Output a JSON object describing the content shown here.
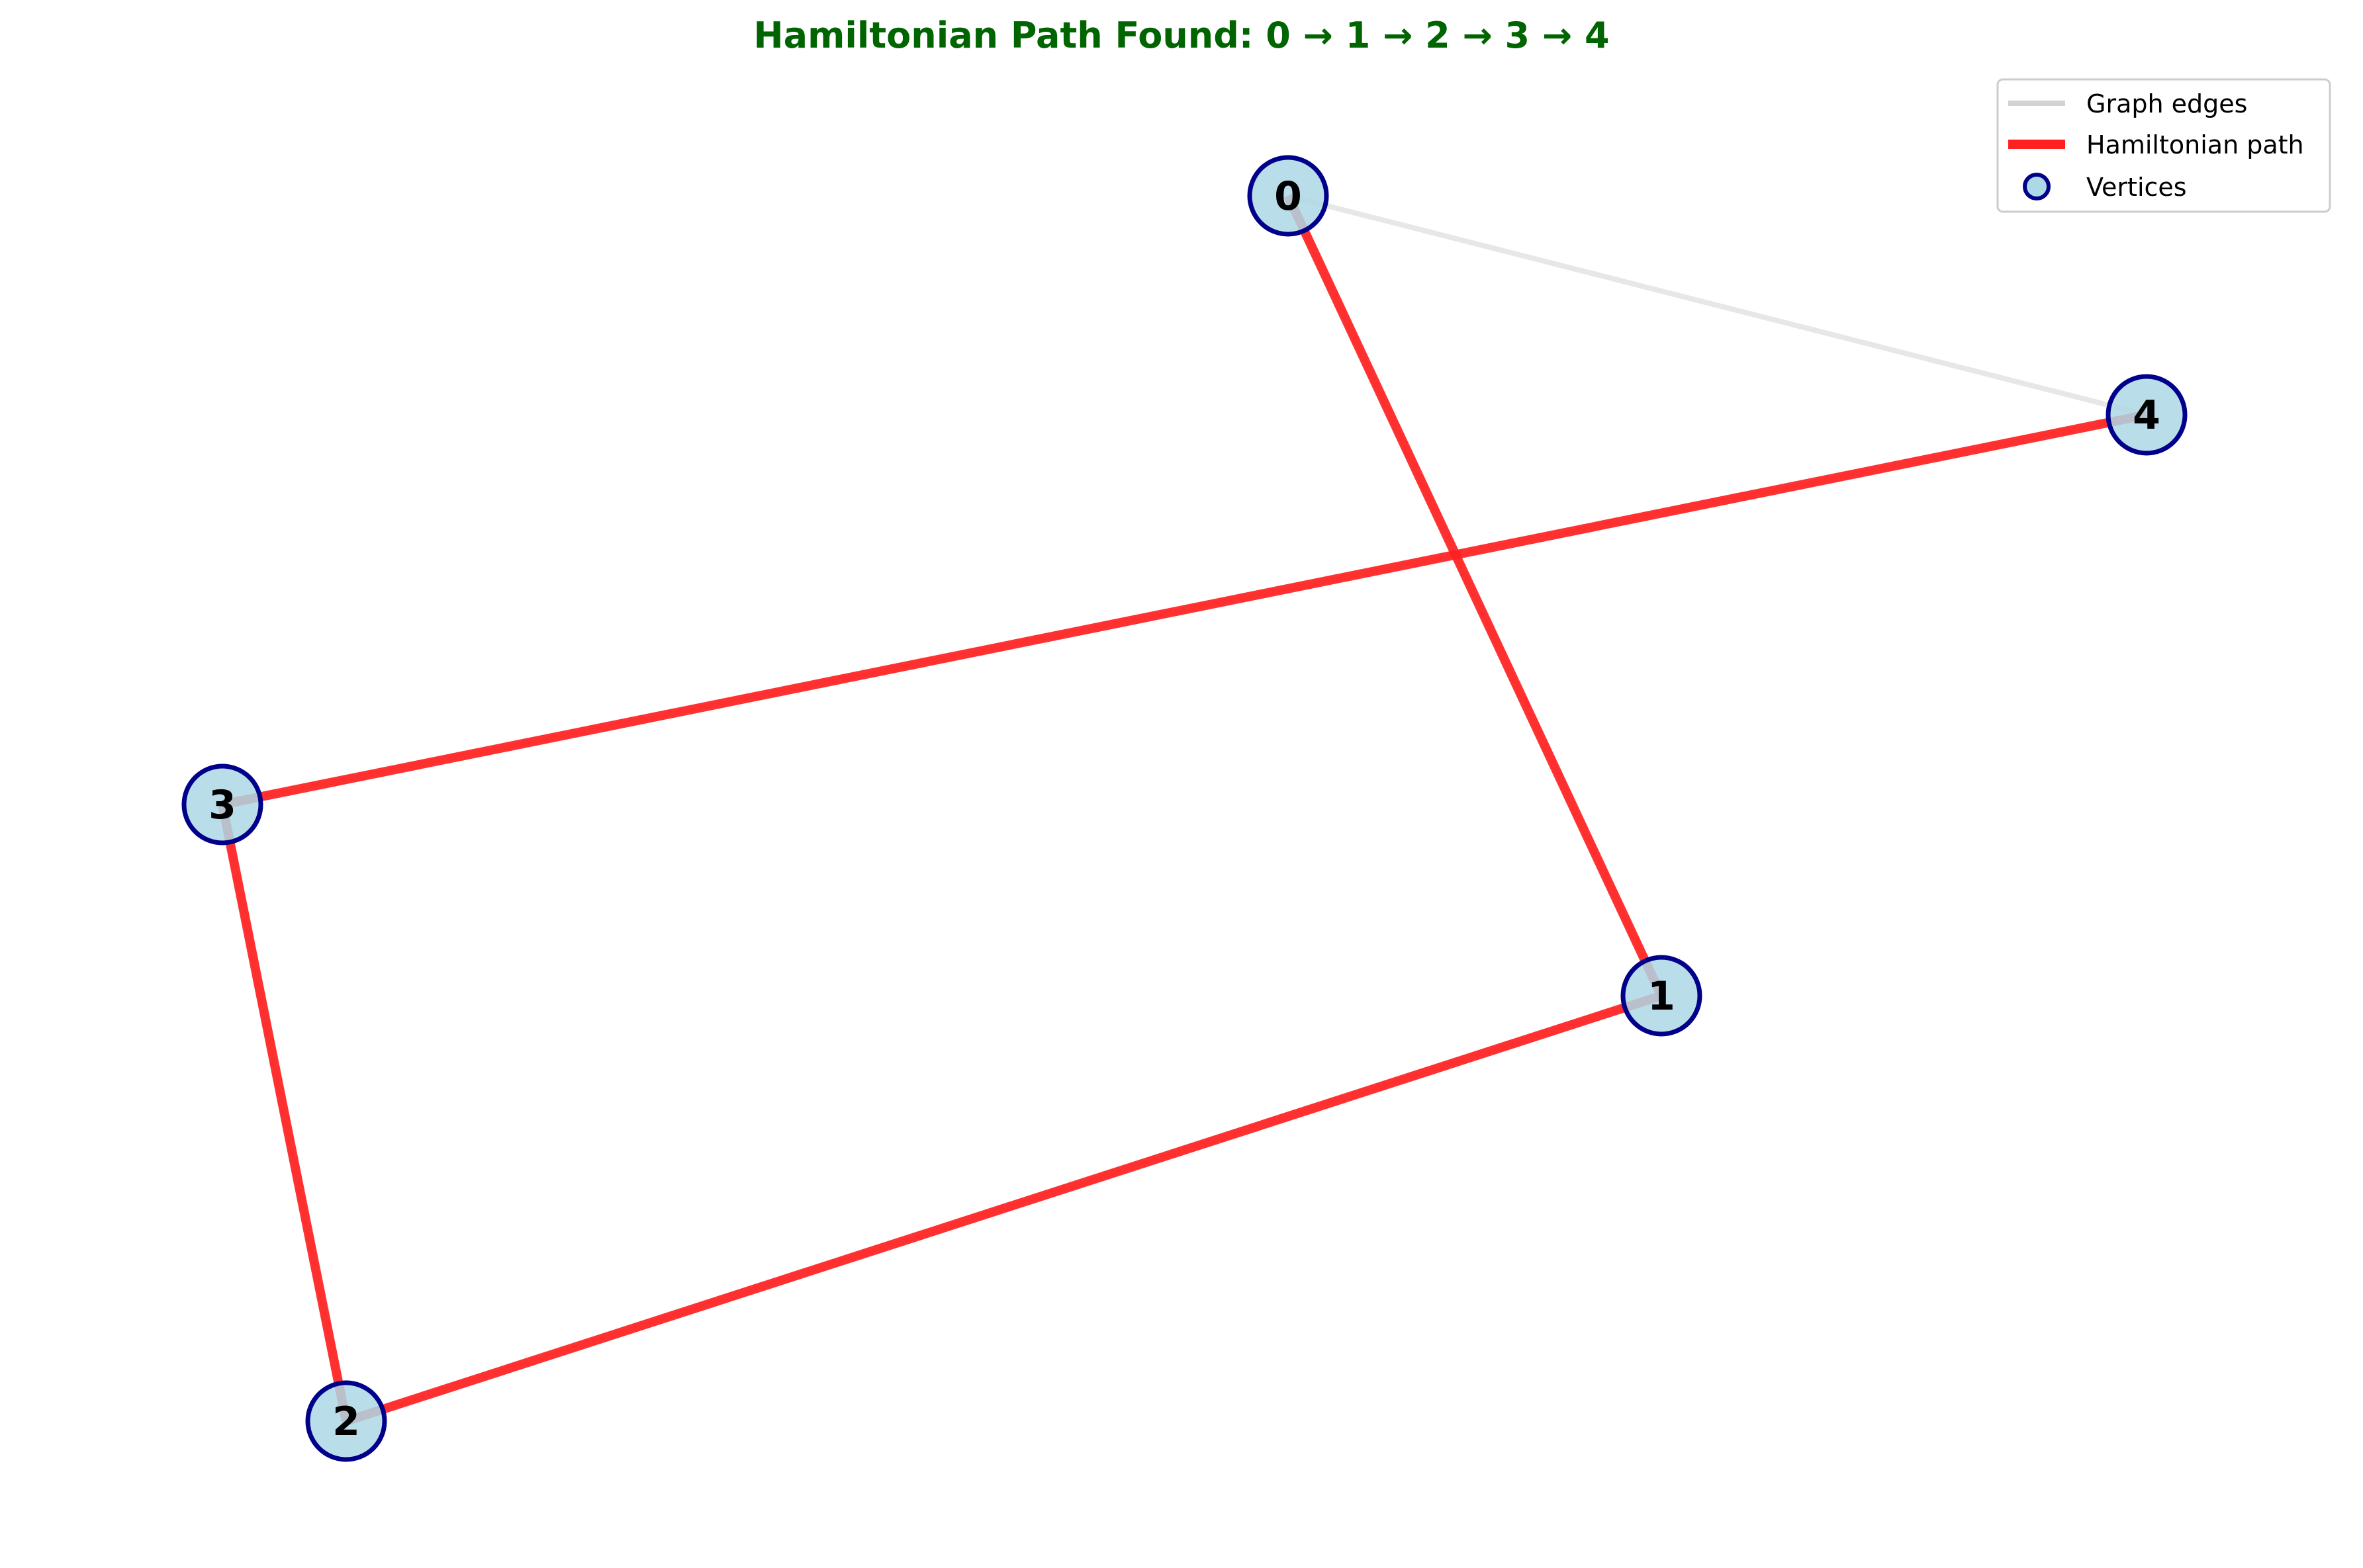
{
  "title": "Hamiltonian Path Found: 0 → 1 → 2 → 3 → 4",
  "colors": {
    "title": "#006400",
    "graph_edge": "#d3d3d3",
    "path_edge": "#ff2020",
    "node_fill": "#add8e6",
    "node_stroke": "#00008b"
  },
  "vertices": [
    {
      "id": 0,
      "label": "0"
    },
    {
      "id": 1,
      "label": "1"
    },
    {
      "id": 2,
      "label": "2"
    },
    {
      "id": 3,
      "label": "3"
    },
    {
      "id": 4,
      "label": "4"
    }
  ],
  "graph_edges": [
    [
      0,
      1
    ],
    [
      1,
      2
    ],
    [
      2,
      3
    ],
    [
      3,
      4
    ],
    [
      0,
      4
    ]
  ],
  "hamiltonian_path": [
    0,
    1,
    2,
    3,
    4
  ],
  "legend": {
    "graph_edges": "Graph edges",
    "hamiltonian_path": "Hamiltonian path",
    "vertices": "Vertices"
  }
}
